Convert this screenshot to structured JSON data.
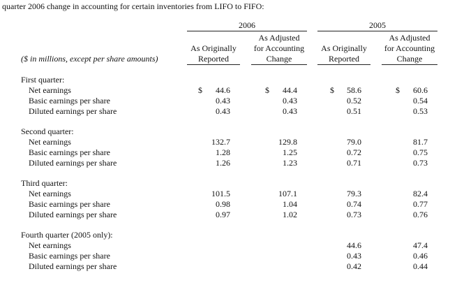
{
  "intro_text": "quarter 2006 change in accounting for certain inventories from LIFO to FIFO:",
  "header": {
    "year_2006": "2006",
    "year_2005": "2005",
    "units_label": "($ in millions, except per share amounts)",
    "col_orig_l1": "As Originally",
    "col_orig_l2": "Reported",
    "col_adj_l1": "As Adjusted",
    "col_adj_l2": "for Accounting",
    "col_adj_l3": "Change"
  },
  "sections": [
    {
      "title": "First quarter:",
      "rows": [
        {
          "label": "Net earnings",
          "v": [
            "44.6",
            "44.4",
            "58.6",
            "60.6"
          ],
          "dollar": true
        },
        {
          "label": "Basic earnings per share",
          "v": [
            "0.43",
            "0.43",
            "0.52",
            "0.54"
          ]
        },
        {
          "label": "Diluted earnings per share",
          "v": [
            "0.43",
            "0.43",
            "0.51",
            "0.53"
          ]
        }
      ]
    },
    {
      "title": "Second quarter:",
      "rows": [
        {
          "label": "Net earnings",
          "v": [
            "132.7",
            "129.8",
            "79.0",
            "81.7"
          ]
        },
        {
          "label": "Basic earnings per share",
          "v": [
            "1.28",
            "1.25",
            "0.72",
            "0.75"
          ]
        },
        {
          "label": "Diluted earnings per share",
          "v": [
            "1.26",
            "1.23",
            "0.71",
            "0.73"
          ]
        }
      ]
    },
    {
      "title": "Third quarter:",
      "rows": [
        {
          "label": "Net earnings",
          "v": [
            "101.5",
            "107.1",
            "79.3",
            "82.4"
          ]
        },
        {
          "label": "Basic earnings per share",
          "v": [
            "0.98",
            "1.04",
            "0.74",
            "0.77"
          ]
        },
        {
          "label": "Diluted earnings per share",
          "v": [
            "0.97",
            "1.02",
            "0.73",
            "0.76"
          ]
        }
      ]
    },
    {
      "title": "Fourth quarter (2005 only):",
      "rows": [
        {
          "label": "Net earnings",
          "v": [
            "",
            "",
            "44.6",
            "47.4"
          ]
        },
        {
          "label": "Basic earnings per share",
          "v": [
            "",
            "",
            "0.43",
            "0.46"
          ]
        },
        {
          "label": "Diluted earnings per share",
          "v": [
            "",
            "",
            "0.42",
            "0.44"
          ]
        }
      ]
    }
  ],
  "dollar_sign": "$"
}
